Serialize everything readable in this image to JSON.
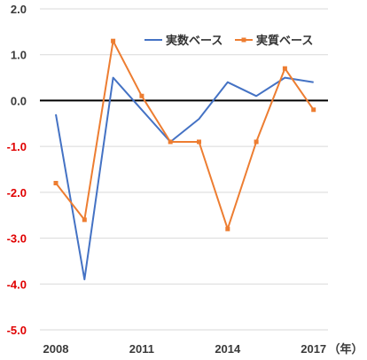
{
  "chart_data": {
    "type": "line",
    "x": [
      2008,
      2009,
      2010,
      2011,
      2012,
      2013,
      2014,
      2015,
      2016,
      2017
    ],
    "x_tick_labels": [
      "2008",
      "2011",
      "2014",
      "2017"
    ],
    "x_unit_label": "（年）",
    "ylim": [
      -5.0,
      2.0
    ],
    "y_tick_values": [
      2.0,
      1.0,
      0.0,
      -1.0,
      -2.0,
      -3.0,
      -4.0,
      -5.0
    ],
    "y_tick_labels": [
      "2.0",
      "1.0",
      "0.0",
      "-1.0",
      "-2.0",
      "-3.0",
      "-4.0",
      "-5.0"
    ],
    "grid": true,
    "legend_position": "top-right",
    "series": [
      {
        "name": "実数ベース",
        "color": "#4472C4",
        "marker": "none",
        "values": [
          -0.3,
          -3.9,
          0.5,
          -0.2,
          -0.9,
          -0.4,
          0.4,
          0.1,
          0.5,
          0.4
        ]
      },
      {
        "name": "実質ベース",
        "color": "#ED7D31",
        "marker": "square",
        "values": [
          -1.8,
          -2.6,
          1.3,
          0.1,
          -0.9,
          -0.9,
          -2.8,
          -0.9,
          0.7,
          -0.2
        ]
      }
    ],
    "colors": {
      "positive_tick": "#3a3a3a",
      "negative_tick": "#E00000",
      "grid": "#d9d9d9",
      "zero_line": "#000000"
    }
  }
}
